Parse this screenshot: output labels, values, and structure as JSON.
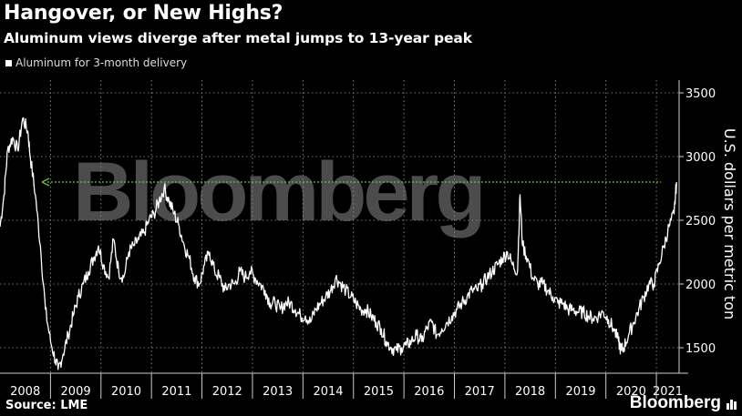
{
  "header": {
    "title": "Hangover, or New Highs?",
    "subtitle": "Aluminum views diverge after metal jumps to 13-year peak"
  },
  "footer": {
    "source": "Source: LME",
    "brand": "Bloomberg",
    "brand_icon": "bar-chart-icon"
  },
  "watermark": "Bloomberg",
  "colors": {
    "background": "#000000",
    "series": "#ffffff",
    "reference_line": "#6fbf3a",
    "grid": "#9a9a9a"
  },
  "chart_data": {
    "type": "line",
    "title": "Hangover, or New Highs?",
    "subtitle": "Aluminum views diverge after metal jumps to 13-year peak",
    "xlabel": "",
    "ylabel": "U.S. dollars per metric ton",
    "x_ticks": [
      "2008",
      "2009",
      "2010",
      "2011",
      "2012",
      "2013",
      "2014",
      "2015",
      "2016",
      "2017",
      "2018",
      "2019",
      "2020",
      "2021"
    ],
    "y_ticks": [
      1500,
      2000,
      2500,
      3000,
      3500
    ],
    "xlim": [
      2008.0,
      2021.45
    ],
    "ylim": [
      1300,
      3600
    ],
    "grid": true,
    "y_axis_position": "right",
    "legend_position": "top-left",
    "reference_line": {
      "value": 2800,
      "style": "dotted",
      "arrow": "left",
      "color": "#6fbf3a"
    },
    "series": [
      {
        "name": "Aluminum for 3-month delivery",
        "x": [
          2008.0,
          2008.08,
          2008.15,
          2008.25,
          2008.35,
          2008.45,
          2008.55,
          2008.6,
          2008.7,
          2008.8,
          2008.9,
          2009.0,
          2009.1,
          2009.15,
          2009.25,
          2009.35,
          2009.45,
          2009.55,
          2009.65,
          2009.75,
          2009.85,
          2009.95,
          2010.05,
          2010.15,
          2010.25,
          2010.35,
          2010.45,
          2010.55,
          2010.65,
          2010.75,
          2010.85,
          2010.95,
          2011.05,
          2011.15,
          2011.25,
          2011.35,
          2011.45,
          2011.55,
          2011.65,
          2011.75,
          2011.85,
          2011.95,
          2012.05,
          2012.15,
          2012.25,
          2012.35,
          2012.45,
          2012.55,
          2012.65,
          2012.75,
          2012.85,
          2012.95,
          2013.05,
          2013.15,
          2013.25,
          2013.35,
          2013.45,
          2013.55,
          2013.65,
          2013.75,
          2013.85,
          2013.95,
          2014.05,
          2014.15,
          2014.25,
          2014.35,
          2014.45,
          2014.55,
          2014.65,
          2014.75,
          2014.85,
          2014.95,
          2015.05,
          2015.15,
          2015.25,
          2015.35,
          2015.45,
          2015.55,
          2015.65,
          2015.75,
          2015.85,
          2015.95,
          2016.05,
          2016.15,
          2016.25,
          2016.35,
          2016.45,
          2016.55,
          2016.65,
          2016.75,
          2016.85,
          2016.95,
          2017.05,
          2017.15,
          2017.25,
          2017.35,
          2017.45,
          2017.55,
          2017.65,
          2017.75,
          2017.85,
          2017.95,
          2018.05,
          2018.15,
          2018.25,
          2018.3,
          2018.35,
          2018.45,
          2018.55,
          2018.65,
          2018.75,
          2018.85,
          2018.95,
          2019.05,
          2019.15,
          2019.25,
          2019.35,
          2019.45,
          2019.55,
          2019.65,
          2019.75,
          2019.85,
          2019.95,
          2020.05,
          2020.15,
          2020.25,
          2020.3,
          2020.35,
          2020.45,
          2020.55,
          2020.65,
          2020.75,
          2020.85,
          2020.95,
          2021.05,
          2021.15,
          2021.25,
          2021.35,
          2021.4
        ],
        "values": [
          2450,
          2700,
          3050,
          3150,
          3050,
          3300,
          3200,
          3000,
          2700,
          2300,
          1800,
          1550,
          1400,
          1330,
          1450,
          1600,
          1750,
          1900,
          2000,
          2100,
          2200,
          2300,
          2150,
          2050,
          2350,
          2100,
          2050,
          2250,
          2300,
          2350,
          2400,
          2500,
          2550,
          2650,
          2750,
          2650,
          2550,
          2450,
          2300,
          2200,
          2050,
          2000,
          2150,
          2250,
          2100,
          2050,
          1950,
          2000,
          2000,
          2100,
          2050,
          2100,
          2050,
          2000,
          1950,
          1850,
          1850,
          1800,
          1850,
          1850,
          1800,
          1750,
          1750,
          1700,
          1800,
          1850,
          1900,
          1950,
          2050,
          2000,
          1950,
          1900,
          1850,
          1800,
          1800,
          1750,
          1700,
          1650,
          1550,
          1500,
          1480,
          1500,
          1520,
          1550,
          1600,
          1550,
          1650,
          1700,
          1600,
          1650,
          1700,
          1750,
          1800,
          1850,
          1900,
          1950,
          1950,
          2000,
          2050,
          2100,
          2150,
          2200,
          2250,
          2150,
          2100,
          2700,
          2300,
          2200,
          2050,
          2000,
          2000,
          1950,
          1900,
          1850,
          1850,
          1800,
          1800,
          1780,
          1780,
          1750,
          1730,
          1750,
          1780,
          1720,
          1650,
          1550,
          1480,
          1500,
          1600,
          1700,
          1800,
          1900,
          2000,
          2000,
          2150,
          2300,
          2450,
          2550,
          2800
        ]
      }
    ]
  }
}
